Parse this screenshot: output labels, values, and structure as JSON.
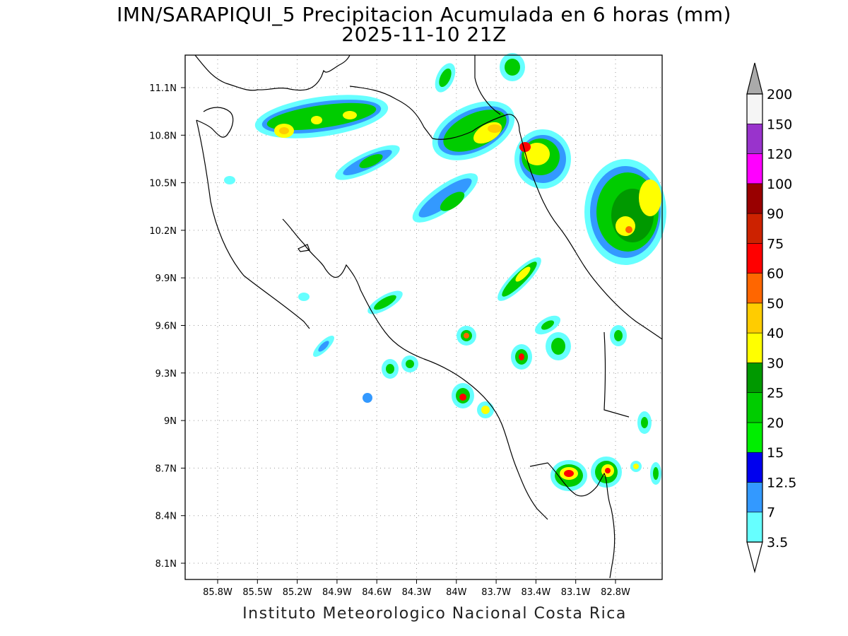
{
  "title": {
    "line1": "IMN/SARAPIQUI_5 Precipitacion Acumulada en 6 horas (mm)",
    "line2": "2025-11-10 21Z"
  },
  "footer": "Instituto Meteorologico Nacional Costa Rica",
  "map": {
    "lon_range": [
      -86.0,
      -83.0
    ],
    "lat_range": [
      8.0,
      11.2
    ],
    "x_ticks": [
      "85.8W",
      "85.5W",
      "85.2W",
      "84.9W",
      "84.6W",
      "84.3W",
      "84W",
      "83.7W",
      "83.4W",
      "83.1W",
      "82.8W"
    ],
    "y_ticks": [
      "11.1N",
      "10.8N",
      "10.5N",
      "10.2N",
      "9.9N",
      "9.6N",
      "9.3N",
      "9N",
      "8.7N",
      "8.4N",
      "8.1N"
    ],
    "grid": "dotted"
  },
  "colorbar": {
    "labels": [
      "3.5",
      "7",
      "12.5",
      "15",
      "20",
      "25",
      "30",
      "40",
      "50",
      "60",
      "75",
      "90",
      "100",
      "120",
      "150",
      "200"
    ],
    "colors": [
      "#66ffff",
      "#3399ff",
      "#0000ee",
      "#00ee00",
      "#00cc00",
      "#009900",
      "#ffff00",
      "#ffcc00",
      "#ff6600",
      "#ff0000",
      "#cc2200",
      "#990000",
      "#ff00ff",
      "#9933cc",
      "#f5f5f5",
      "#aaaaaa"
    ],
    "over_color": "#aaaaaa",
    "under_color": "#ffffff"
  }
}
